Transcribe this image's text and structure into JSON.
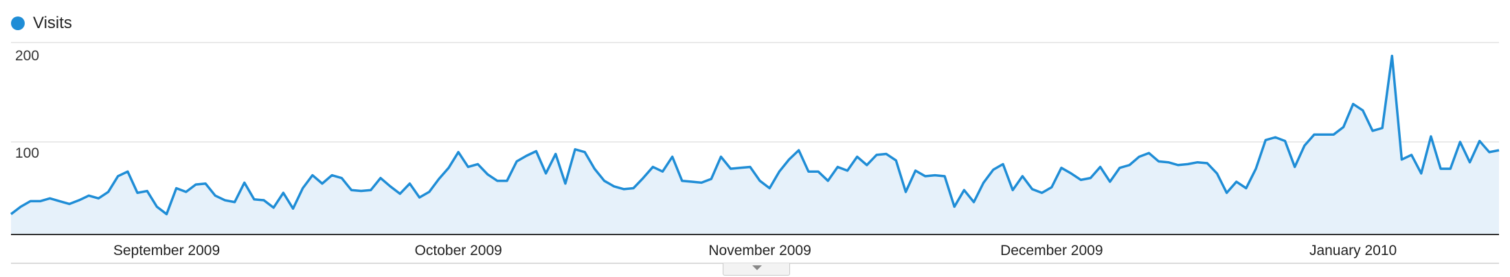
{
  "legend": {
    "label": "Visits",
    "color": "#1f8dd6"
  },
  "chart_data": {
    "type": "area",
    "title": "",
    "xlabel": "",
    "ylabel": "",
    "ylim": [
      0,
      200
    ],
    "yticks": [
      "200",
      "100"
    ],
    "grid": true,
    "legend_position": "top-left",
    "series_color": "#1f8dd6",
    "fill_color": "#e6f1fa",
    "x_start": "2009-08-16",
    "month_labels": [
      {
        "label": "September 2009",
        "date": "2009-09-01"
      },
      {
        "label": "October 2009",
        "date": "2009-10-01"
      },
      {
        "label": "November 2009",
        "date": "2009-11-01"
      },
      {
        "label": "December 2009",
        "date": "2009-12-01"
      },
      {
        "label": "January 2010",
        "date": "2010-01-01"
      }
    ],
    "series": [
      {
        "values": [
          22,
          30,
          36,
          36,
          39,
          36,
          33,
          37,
          42,
          39,
          46,
          63,
          68,
          45,
          47,
          30,
          22,
          50,
          46,
          54,
          55,
          42,
          37,
          35,
          56,
          38,
          37,
          29,
          45,
          28,
          50,
          64,
          55,
          64,
          61,
          48,
          47,
          48,
          61,
          52,
          44,
          55,
          40,
          46,
          60,
          72,
          89,
          73,
          76,
          65,
          58,
          58,
          79,
          85,
          90,
          66,
          87,
          55,
          92,
          89,
          71,
          58,
          52,
          49,
          50,
          61,
          73,
          68,
          84,
          58,
          57,
          56,
          60,
          84,
          71,
          72,
          73,
          58,
          50,
          68,
          81,
          91,
          68,
          68,
          58,
          73,
          69,
          84,
          75,
          86,
          87,
          80,
          46,
          69,
          63,
          64,
          63,
          30,
          48,
          35,
          56,
          70,
          76,
          48,
          63,
          49,
          45,
          51,
          72,
          66,
          59,
          61,
          73,
          57,
          72,
          75,
          84,
          88,
          79,
          78,
          75,
          76,
          78,
          77,
          66,
          45,
          57,
          50,
          71,
          102,
          105,
          101,
          73,
          96,
          108,
          108,
          108,
          116,
          141,
          134,
          112,
          115,
          193,
          81,
          86,
          66,
          106,
          71,
          71,
          100,
          78,
          101,
          89,
          91
        ]
      }
    ]
  }
}
